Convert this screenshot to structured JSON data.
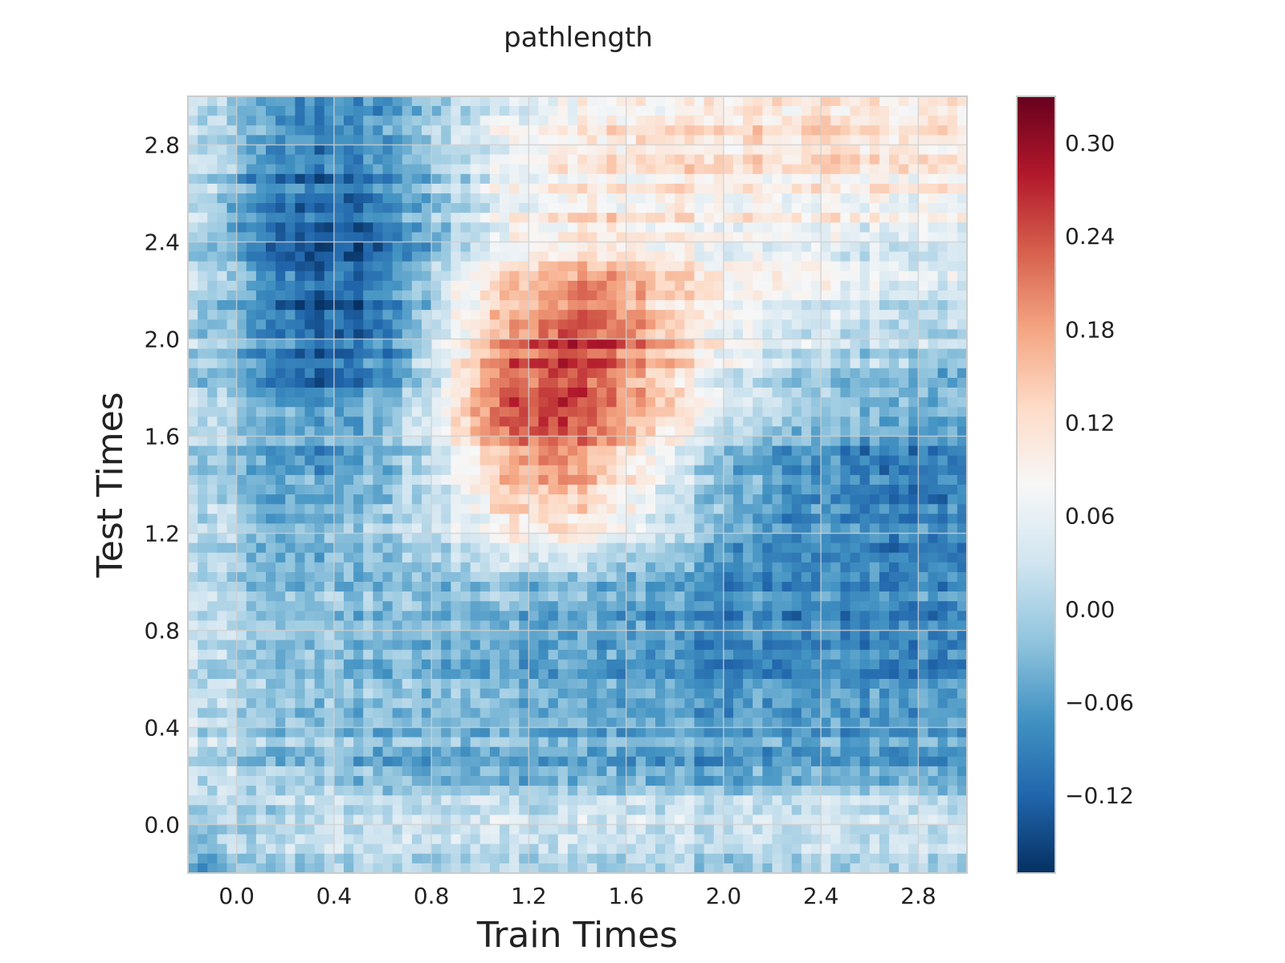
{
  "chart_data": {
    "type": "heatmap",
    "title": "pathlength",
    "xlabel": "Train Times",
    "ylabel": "Test Times",
    "xlim": [
      -0.2,
      3.0
    ],
    "ylim": [
      -0.2,
      3.0
    ],
    "x_ticks": [
      "0.0",
      "0.4",
      "0.8",
      "1.2",
      "1.6",
      "2.0",
      "2.4",
      "2.8"
    ],
    "y_ticks": [
      "0.0",
      "0.4",
      "0.8",
      "1.2",
      "1.6",
      "2.0",
      "2.4",
      "2.8"
    ],
    "grid": true,
    "colormap": "RdBu_r",
    "color_range": [
      -0.17,
      0.33
    ],
    "colorbar_ticks": [
      "0.30",
      "0.24",
      "0.18",
      "0.12",
      "0.06",
      "0.00",
      "−0.06",
      "−0.12"
    ],
    "grid_resolution": 20,
    "values_y_descending": [
      [
        0.02,
        -0.04,
        -0.07,
        -0.09,
        -0.08,
        -0.04,
        0.0,
        0.03,
        0.05,
        0.06,
        0.08,
        0.1,
        0.1,
        0.11,
        0.11,
        0.11,
        0.11,
        0.11,
        0.11,
        0.11
      ],
      [
        0.01,
        -0.05,
        -0.08,
        -0.1,
        -0.09,
        -0.05,
        -0.01,
        0.02,
        0.06,
        0.08,
        0.09,
        0.1,
        0.11,
        0.11,
        0.11,
        0.11,
        0.11,
        0.1,
        0.1,
        0.1
      ],
      [
        0.01,
        -0.06,
        -0.09,
        -0.11,
        -0.1,
        -0.06,
        -0.01,
        0.03,
        0.07,
        0.09,
        0.09,
        0.09,
        0.1,
        0.1,
        0.1,
        0.09,
        0.09,
        0.09,
        0.09,
        0.09
      ],
      [
        0.01,
        -0.06,
        -0.1,
        -0.12,
        -0.11,
        -0.06,
        -0.01,
        0.03,
        0.08,
        0.1,
        0.11,
        0.1,
        0.09,
        0.09,
        0.09,
        0.08,
        0.07,
        0.07,
        0.06,
        0.06
      ],
      [
        0.0,
        -0.06,
        -0.11,
        -0.13,
        -0.12,
        -0.07,
        0.01,
        0.06,
        0.12,
        0.14,
        0.15,
        0.14,
        0.11,
        0.09,
        0.08,
        0.07,
        0.06,
        0.05,
        0.04,
        0.04
      ],
      [
        0.0,
        -0.05,
        -0.1,
        -0.12,
        -0.11,
        -0.06,
        0.03,
        0.11,
        0.18,
        0.21,
        0.21,
        0.17,
        0.13,
        0.09,
        0.07,
        0.05,
        0.04,
        0.03,
        0.02,
        0.02
      ],
      [
        0.0,
        -0.05,
        -0.09,
        -0.11,
        -0.1,
        -0.05,
        0.05,
        0.15,
        0.22,
        0.26,
        0.25,
        0.2,
        0.14,
        0.09,
        0.06,
        0.03,
        0.02,
        0.01,
        0.0,
        0.0
      ],
      [
        0.0,
        -0.04,
        -0.08,
        -0.09,
        -0.08,
        -0.03,
        0.06,
        0.17,
        0.24,
        0.26,
        0.23,
        0.18,
        0.12,
        0.07,
        0.03,
        0.0,
        -0.02,
        -0.03,
        -0.04,
        -0.04
      ],
      [
        0.01,
        -0.04,
        -0.06,
        -0.07,
        -0.06,
        -0.01,
        0.06,
        0.15,
        0.22,
        0.23,
        0.19,
        0.14,
        0.08,
        0.03,
        -0.01,
        -0.04,
        -0.05,
        -0.06,
        -0.06,
        -0.06
      ],
      [
        0.01,
        -0.03,
        -0.05,
        -0.05,
        -0.04,
        0.0,
        0.05,
        0.12,
        0.19,
        0.2,
        0.16,
        0.11,
        0.05,
        0.0,
        -0.04,
        -0.06,
        -0.07,
        -0.08,
        -0.08,
        -0.08
      ],
      [
        0.02,
        -0.03,
        -0.04,
        -0.04,
        -0.03,
        0.0,
        0.03,
        0.08,
        0.13,
        0.14,
        0.11,
        0.07,
        0.02,
        -0.02,
        -0.05,
        -0.07,
        -0.08,
        -0.09,
        -0.09,
        -0.09
      ],
      [
        0.02,
        -0.02,
        -0.03,
        -0.03,
        -0.02,
        0.0,
        0.02,
        0.05,
        0.08,
        0.08,
        0.06,
        0.03,
        0.0,
        -0.03,
        -0.06,
        -0.08,
        -0.09,
        -0.09,
        -0.09,
        -0.09
      ],
      [
        0.02,
        -0.02,
        -0.03,
        -0.03,
        -0.03,
        -0.02,
        -0.02,
        -0.02,
        -0.02,
        -0.03,
        -0.04,
        -0.05,
        -0.06,
        -0.07,
        -0.07,
        -0.08,
        -0.08,
        -0.08,
        -0.08,
        -0.08
      ],
      [
        0.02,
        -0.01,
        -0.02,
        -0.03,
        -0.03,
        -0.03,
        -0.03,
        -0.04,
        -0.05,
        -0.06,
        -0.06,
        -0.07,
        -0.08,
        -0.08,
        -0.08,
        -0.09,
        -0.09,
        -0.09,
        -0.09,
        -0.09
      ],
      [
        0.02,
        -0.01,
        -0.02,
        -0.02,
        -0.02,
        -0.03,
        -0.03,
        -0.04,
        -0.05,
        -0.05,
        -0.06,
        -0.06,
        -0.07,
        -0.07,
        -0.08,
        -0.08,
        -0.08,
        -0.08,
        -0.08,
        -0.08
      ],
      [
        0.03,
        0.0,
        -0.01,
        -0.02,
        -0.02,
        -0.02,
        -0.03,
        -0.03,
        -0.04,
        -0.04,
        -0.05,
        -0.05,
        -0.05,
        -0.06,
        -0.06,
        -0.06,
        -0.06,
        -0.06,
        -0.06,
        -0.06
      ],
      [
        0.03,
        0.0,
        -0.01,
        -0.01,
        -0.02,
        -0.02,
        -0.02,
        -0.03,
        -0.03,
        -0.04,
        -0.04,
        -0.04,
        -0.05,
        -0.05,
        -0.05,
        -0.05,
        -0.05,
        -0.05,
        -0.05,
        -0.05
      ],
      [
        0.02,
        0.0,
        -0.02,
        -0.03,
        -0.04,
        -0.05,
        -0.05,
        -0.06,
        -0.06,
        -0.06,
        -0.06,
        -0.06,
        -0.06,
        -0.06,
        -0.06,
        -0.06,
        -0.06,
        -0.06,
        -0.06,
        -0.06
      ],
      [
        0.0,
        0.0,
        0.02,
        0.03,
        0.03,
        0.03,
        0.04,
        0.04,
        0.04,
        0.04,
        0.04,
        0.04,
        0.04,
        0.04,
        0.04,
        0.04,
        0.04,
        0.04,
        0.04,
        0.04
      ],
      [
        -0.03,
        0.0,
        0.01,
        0.01,
        0.01,
        0.01,
        0.01,
        0.01,
        0.01,
        0.01,
        0.01,
        0.01,
        0.01,
        0.01,
        0.01,
        0.01,
        0.01,
        0.01,
        0.01,
        0.01
      ]
    ]
  }
}
